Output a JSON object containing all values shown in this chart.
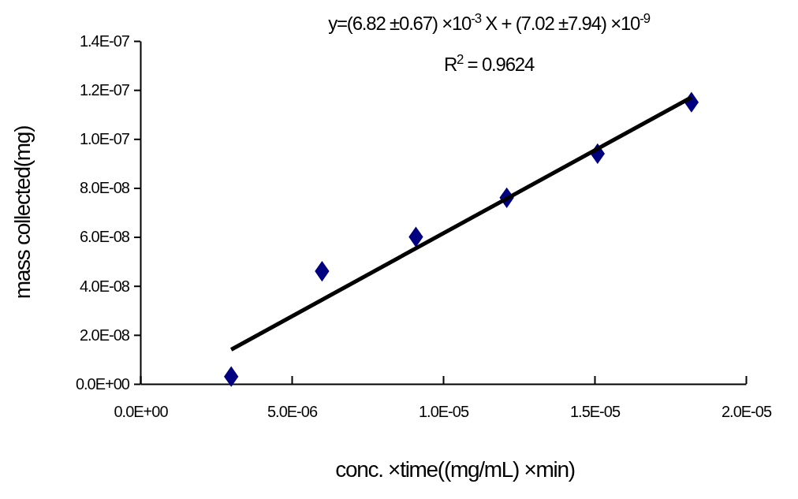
{
  "chart_data": {
    "type": "scatter",
    "xlabel": "conc. ×time((mg/mL) ×min)",
    "ylabel": "mass collected(mg)",
    "annotations": [
      "y=(6.82 ±0.67) ×10$^{-3}$ X + (7.02 ±7.94) ×10$^{-9}$",
      "R$^{2}$ = 0.9624"
    ],
    "xlim": [
      0,
      2e-05
    ],
    "xticks": [
      {
        "value": 0,
        "label": "0.0E+00"
      },
      {
        "value": 5e-06,
        "label": "5.0E-06"
      },
      {
        "value": 1e-05,
        "label": "1.0E-05"
      },
      {
        "value": 1.5e-05,
        "label": "1.5E-05"
      },
      {
        "value": 2e-05,
        "label": "2.0E-05"
      }
    ],
    "ylim": [
      0,
      1.4e-07
    ],
    "yticks": [
      {
        "value": 0,
        "label": "0.0E+00"
      },
      {
        "value": 2e-08,
        "label": "2.0E-08"
      },
      {
        "value": 4e-08,
        "label": "4.0E-08"
      },
      {
        "value": 6e-08,
        "label": "6.0E-08"
      },
      {
        "value": 8e-08,
        "label": "8.0E-08"
      },
      {
        "value": 1e-07,
        "label": "1.0E-07"
      },
      {
        "value": 1.2e-07,
        "label": "1.2E-07"
      },
      {
        "value": 1.4e-07,
        "label": "1.4E-07"
      }
    ],
    "series": [
      {
        "color": "#000080",
        "marker": "diamond",
        "x": [
          3e-06,
          6e-06,
          9.1e-06,
          1.21e-05,
          1.51e-05,
          1.82e-05
        ],
        "values": [
          3e-09,
          4.6e-08,
          6e-08,
          7.6e-08,
          9.4e-08,
          1.15e-07
        ]
      },
      {
        "type": "line",
        "color": "#000000",
        "x": [
          3e-06,
          1.82e-05
        ],
        "values": [
          1.4e-08,
          1.17e-07
        ]
      }
    ]
  }
}
